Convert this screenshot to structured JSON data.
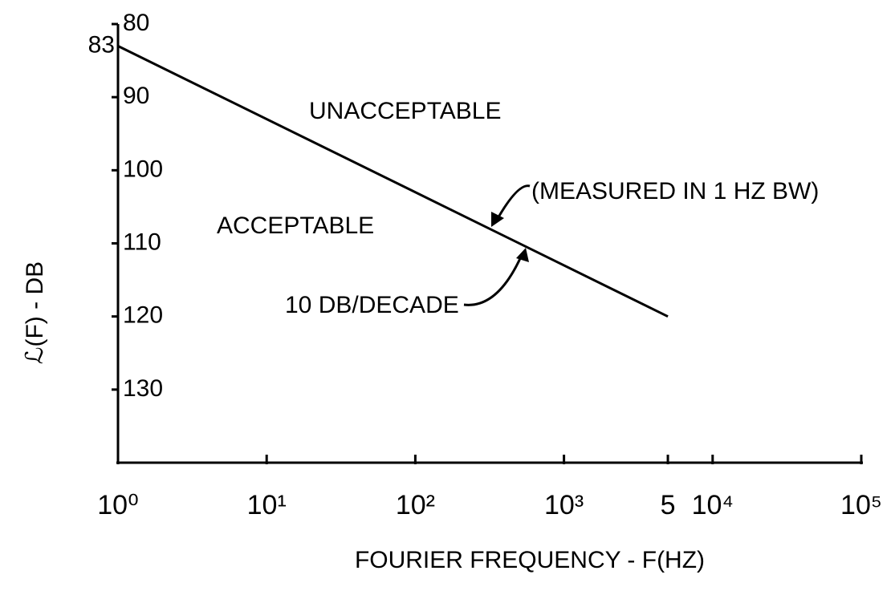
{
  "chart_data": {
    "type": "line",
    "x_label": "FOURIER FREQUENCY - F(HZ)",
    "y_label": "ℒ(F) - DB",
    "annotations": [
      "UNACCEPTABLE",
      "ACCEPTABLE",
      "(MEASURED IN 1 HZ BW)",
      "10 DB/DECADE"
    ],
    "x": [
      1,
      5000
    ],
    "series": [
      {
        "color": "#000000",
        "values": [
          83,
          120
        ]
      }
    ],
    "xlim": [
      1,
      100000
    ],
    "x_log": true,
    "xticks": [
      {
        "value": 1,
        "label": "10⁰"
      },
      {
        "value": 10,
        "label": "10¹"
      },
      {
        "value": 100,
        "label": "10²"
      },
      {
        "value": 1000,
        "label": "10³"
      },
      {
        "value": 5000,
        "label": "5"
      },
      {
        "value": 10000,
        "label": "10⁴"
      },
      {
        "value": 100000,
        "label": "10⁵"
      }
    ],
    "ylim": [
      80,
      140
    ],
    "y_inverted": true,
    "yticks": [
      80,
      83,
      90,
      100,
      110,
      120,
      130
    ],
    "grid": false
  }
}
